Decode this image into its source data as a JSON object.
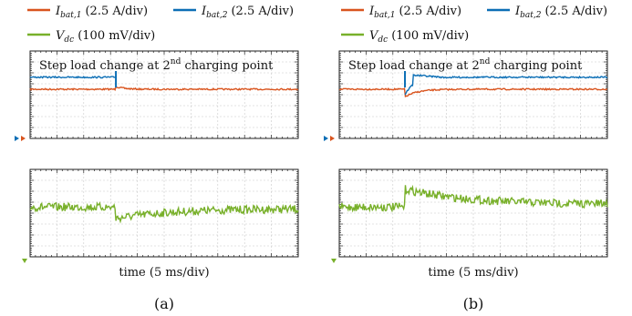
{
  "colors": {
    "ibat1": "#d9541e",
    "ibat2": "#0b6eb5",
    "vdc": "#78b02a",
    "frame": "#222222",
    "grid": "#c8c8c8"
  },
  "legend": {
    "ibat1": {
      "sym": "I",
      "sub": "bat,1",
      "scale": "(2.5 A/div)"
    },
    "ibat2": {
      "sym": "I",
      "sub": "bat,2",
      "scale": "(2.5 A/div)"
    },
    "vdc": {
      "sym": "V",
      "sub": "dc",
      "scale": "(100 mV/div)"
    }
  },
  "chart_data": [
    {
      "type": "line",
      "panel_label": "(a)",
      "annotation": {
        "text": "Step load change at 2",
        "sup": "nd",
        "rest": " charging point"
      },
      "xlabel": "time (5 ms/div)",
      "x_divisions": 10,
      "step_div": 3.2,
      "upper": {
        "series": [
          {
            "name": "Ibat,1",
            "before": 3.5,
            "after": 3.5,
            "transient": "overshoot-up",
            "peak": 3.25,
            "settle_div": 4.2
          },
          {
            "name": "Ibat,2",
            "before": 2.4,
            "after": null
          }
        ]
      },
      "lower": {
        "series": [
          {
            "name": "Vdc",
            "before": 3.45,
            "after": 3.6,
            "transient": "dip",
            "peak": 4.5,
            "settle_div": 10.0
          }
        ]
      }
    },
    {
      "type": "line",
      "panel_label": "(b)",
      "annotation": {
        "text": "Step load change at 2",
        "sup": "nd",
        "rest": " charging point"
      },
      "xlabel": "time (5 ms/div)",
      "x_divisions": 10,
      "step_div": 2.45,
      "upper": {
        "series": [
          {
            "name": "Ibat,1",
            "before": 3.5,
            "after": 3.5,
            "transient": "dip",
            "peak": 4.2,
            "settle_div": 4.0
          },
          {
            "name": "Ibat,2",
            "before": null,
            "after": 2.4,
            "transient": "rise",
            "start": 4.0,
            "peak": 2.2,
            "settle_div": 4.0
          }
        ]
      },
      "lower": {
        "series": [
          {
            "name": "Vdc",
            "before": 3.45,
            "after": 3.2,
            "transient": "spike",
            "peak": 1.8,
            "settle_div": 10.0
          }
        ]
      }
    }
  ]
}
